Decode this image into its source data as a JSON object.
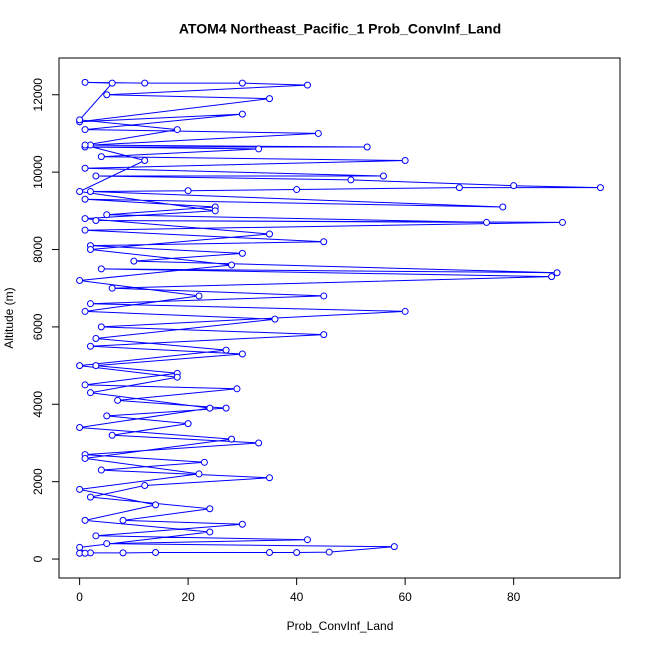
{
  "chart_data": {
    "type": "line",
    "title": "ATOM4 Northeast_Pacific_1 Prob_ConvInf_Land",
    "xlabel": "Prob_ConvInf_Land",
    "ylabel": "Altitude (m)",
    "markers": true,
    "color": "#0000ff",
    "x": [
      0,
      2,
      8,
      14,
      35,
      40,
      46,
      58,
      5,
      42,
      3,
      30,
      8,
      24,
      2,
      12,
      35,
      4,
      23,
      1,
      33,
      6,
      20,
      5,
      27,
      7,
      29,
      1,
      18,
      3,
      30,
      2,
      45,
      4,
      60,
      2,
      45,
      6,
      87,
      4,
      88,
      10,
      30,
      2,
      45,
      1,
      89,
      3,
      75,
      5,
      25,
      1,
      78,
      2,
      20,
      40,
      70,
      96,
      80,
      50,
      3,
      56,
      1,
      60,
      4,
      33,
      1,
      53,
      2,
      44,
      1,
      30,
      0,
      35,
      5,
      42,
      30,
      12,
      1,
      6,
      0,
      18,
      1,
      12,
      0,
      25,
      1,
      35,
      2,
      28,
      0,
      22,
      1,
      36,
      3,
      27,
      0,
      18,
      2,
      24,
      0,
      28,
      1,
      22,
      0,
      14,
      1,
      24,
      0,
      1
    ],
    "values": [
      150,
      160,
      160,
      170,
      170,
      170,
      180,
      320,
      400,
      500,
      600,
      900,
      1000,
      1300,
      1600,
      1900,
      2100,
      2300,
      2500,
      2700,
      3000,
      3200,
      3500,
      3700,
      3900,
      4100,
      4400,
      4500,
      4800,
      5000,
      5300,
      5500,
      5800,
      6000,
      6400,
      6600,
      6800,
      7000,
      7300,
      7500,
      7400,
      7700,
      7900,
      8100,
      8200,
      8500,
      8700,
      8750,
      8700,
      8900,
      9100,
      9300,
      9100,
      9500,
      9520,
      9550,
      9600,
      9600,
      9650,
      9800,
      9900,
      9900,
      10100,
      10300,
      10400,
      10600,
      10650,
      10650,
      10700,
      11000,
      11100,
      11500,
      11300,
      11900,
      12000,
      12250,
      12300,
      12300,
      12320,
      12300,
      11350,
      11100,
      10700,
      10300,
      9500,
      9000,
      8800,
      8400,
      8000,
      7600,
      7200,
      6800,
      6400,
      6200,
      5700,
      5400,
      5000,
      4700,
      4300,
      3900,
      3400,
      3100,
      2600,
      2200,
      1800,
      1400,
      1000,
      700,
      300,
      150
    ],
    "xlim": [
      -3.8,
      99.6
    ],
    "ylim": [
      -490,
      12950
    ],
    "xticks": [
      0,
      20,
      40,
      60,
      80
    ],
    "yticks": [
      0,
      2000,
      4000,
      6000,
      8000,
      10000,
      12000
    ]
  }
}
